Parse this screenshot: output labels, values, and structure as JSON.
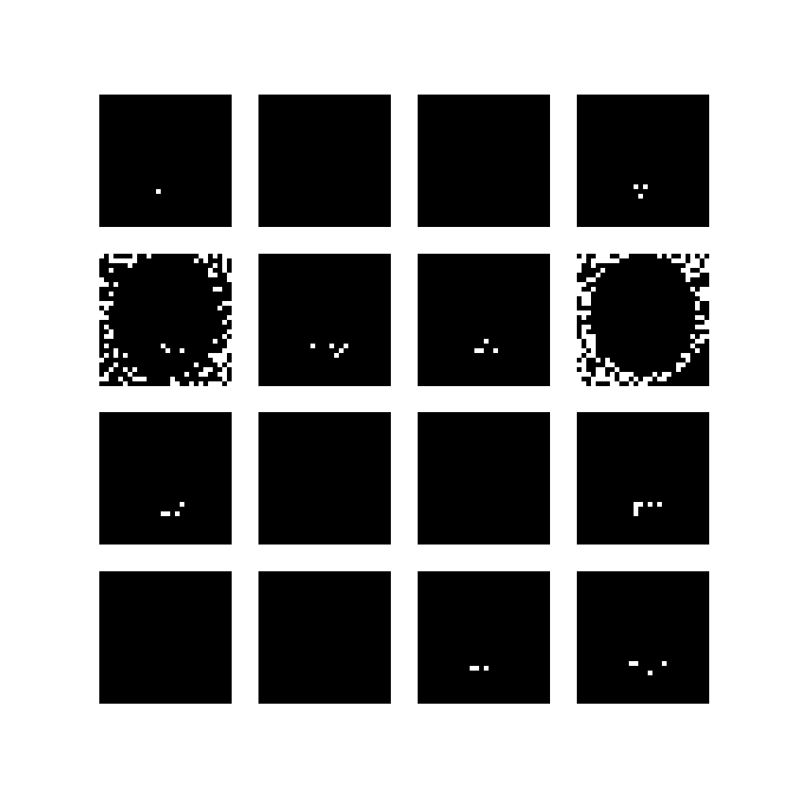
{
  "figure": {
    "rows": 4,
    "cols": 4,
    "background": "#ffffff",
    "tiles": [
      {
        "bg": "#a9a9a9",
        "hair": "#8c8c8c",
        "face": "#c8c8c8",
        "eyes": "#3a3a3a",
        "mouth": "#f2f2f2",
        "corner": "#5a5a5a",
        "seed": 1
      },
      {
        "bg": "#3c3c3c",
        "hair": "#262626",
        "face": "#8a8a8a",
        "eyes": "#1e1e1e",
        "mouth": "#b5b5b5",
        "corner": "#202020",
        "seed": 2
      },
      {
        "bg": "#5a5a5a",
        "hair": "#4a4a4a",
        "face": "#bdbdbd",
        "eyes": "#7a7a7a",
        "mouth": "#9a9a9a",
        "corner": "#2a2a2a",
        "seed": 3
      },
      {
        "bg": "#b0b0b0",
        "hair": "#8e8e8e",
        "face": "#d0d0d0",
        "eyes": "#444444",
        "mouth": "#eeeeee",
        "corner": "#2e2e2e",
        "seed": 4
      },
      {
        "bg": "#f5f5f5",
        "hair": "#333333",
        "face": "#7a7a7a",
        "eyes": "#1c1c1c",
        "mouth": "#f0f0f0",
        "corner": "#ffffff",
        "seed": 5
      },
      {
        "bg": "#a5a5a5",
        "hair": "#7c7c7c",
        "face": "#a8a8a8",
        "eyes": "#2c2c2c",
        "mouth": "#f4f4f4",
        "corner": "#3e3e3e",
        "seed": 6
      },
      {
        "bg": "#a7a7a7",
        "hair": "#7e7e7e",
        "face": "#aaaaaa",
        "eyes": "#2a2a2a",
        "mouth": "#f4f4f4",
        "corner": "#3c3c3c",
        "seed": 7
      },
      {
        "bg": "#ffffff",
        "hair": "#151515",
        "face": "#3a3a3a",
        "eyes": "#0d0d0d",
        "mouth": "#e6e6e6",
        "corner": "#000000",
        "seed": 8
      },
      {
        "bg": "#b3b3b3",
        "hair": "#838383",
        "face": "#bfbfbf",
        "eyes": "#333333",
        "mouth": "#f5f5f5",
        "corner": "#3a3a3a",
        "seed": 9
      },
      {
        "bg": "#a0a0a0",
        "hair": "#6a6a6a",
        "face": "#c4c4c4",
        "eyes": "#3c3c3c",
        "mouth": "#dadada",
        "corner": "#1c1c1c",
        "seed": 10
      },
      {
        "bg": "#8a8a8a",
        "hair": "#555555",
        "face": "#c0c0c0",
        "eyes": "#3a3a3a",
        "mouth": "#cfcfcf",
        "corner": "#161616",
        "seed": 11
      },
      {
        "bg": "#b4b4b4",
        "hair": "#8a8a8a",
        "face": "#c6c6c6",
        "eyes": "#363636",
        "mouth": "#f3f3f3",
        "corner": "#2c2c2c",
        "seed": 12
      },
      {
        "bg": "#aaaaaa",
        "hair": "#7a7a7a",
        "face": "#c8c8c8",
        "eyes": "#333333",
        "mouth": "#dcdcdc",
        "corner": "#1a1a1a",
        "seed": 13
      },
      {
        "bg": "#adadad",
        "hair": "#808080",
        "face": "#c3c3c3",
        "eyes": "#343434",
        "mouth": "#e8e8e8",
        "corner": "#222222",
        "seed": 14
      },
      {
        "bg": "#a2a2a2",
        "hair": "#5e5e5e",
        "face": "#aeaeae",
        "eyes": "#282828",
        "mouth": "#f5f5f5",
        "corner": "#303030",
        "seed": 15
      },
      {
        "bg": "#b1b1b1",
        "hair": "#868686",
        "face": "#c4c4c4",
        "eyes": "#353535",
        "mouth": "#f0f0f0",
        "corner": "#2e2e2e",
        "seed": 16
      }
    ]
  }
}
